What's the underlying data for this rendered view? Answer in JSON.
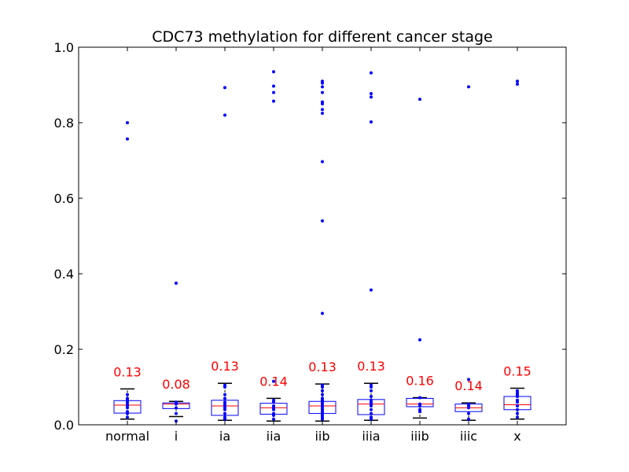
{
  "chart_data": {
    "type": "box",
    "title": "CDC73 methylation for different cancer stage",
    "xlabel": "",
    "ylabel": "",
    "ylim": [
      0.0,
      1.0
    ],
    "yticks": [
      0.0,
      0.2,
      0.4,
      0.6,
      0.8,
      1.0
    ],
    "ytick_labels": [
      "0.0",
      "0.2",
      "0.4",
      "0.6",
      "0.8",
      "1.0"
    ],
    "categories": [
      "normal",
      "i",
      "ia",
      "iia",
      "iib",
      "iiia",
      "iiib",
      "iiic",
      "x"
    ],
    "annotations": [
      "0.13",
      "0.08",
      "0.13",
      "0.14",
      "0.13",
      "0.13",
      "0.16",
      "0.14",
      "0.15"
    ],
    "grid": false,
    "colors": {
      "box": "#0000ff",
      "median": "#ff0000",
      "whisker": "#000000",
      "points": "#0000ff",
      "annotation": "#ff0000"
    },
    "series": [
      {
        "q1": 0.031,
        "median": 0.052,
        "q3": 0.064,
        "whisker_low": 0.015,
        "whisker_high": 0.095,
        "points": [
          0.02,
          0.03,
          0.035,
          0.045,
          0.05,
          0.055,
          0.06,
          0.065,
          0.07,
          0.08,
          0.757,
          0.8
        ]
      },
      {
        "q1": 0.043,
        "median": 0.055,
        "q3": 0.058,
        "whisker_low": 0.022,
        "whisker_high": 0.062,
        "points": [
          0.01,
          0.03,
          0.045,
          0.055,
          0.06,
          0.375
        ]
      },
      {
        "q1": 0.025,
        "median": 0.05,
        "q3": 0.065,
        "whisker_low": 0.012,
        "whisker_high": 0.11,
        "points": [
          0.015,
          0.02,
          0.03,
          0.04,
          0.045,
          0.05,
          0.055,
          0.06,
          0.07,
          0.08,
          0.1,
          0.105,
          0.82,
          0.893
        ]
      },
      {
        "q1": 0.028,
        "median": 0.045,
        "q3": 0.057,
        "whisker_low": 0.01,
        "whisker_high": 0.07,
        "points": [
          0.015,
          0.025,
          0.03,
          0.04,
          0.045,
          0.05,
          0.06,
          0.065,
          0.115,
          0.857,
          0.88,
          0.897,
          0.935
        ]
      },
      {
        "q1": 0.03,
        "median": 0.05,
        "q3": 0.062,
        "whisker_low": 0.01,
        "whisker_high": 0.108,
        "points": [
          0.015,
          0.02,
          0.025,
          0.03,
          0.035,
          0.04,
          0.045,
          0.05,
          0.055,
          0.06,
          0.065,
          0.07,
          0.08,
          0.09,
          0.1,
          0.105,
          0.295,
          0.54,
          0.697,
          0.825,
          0.835,
          0.85,
          0.855,
          0.88,
          0.895,
          0.905,
          0.91
        ]
      },
      {
        "q1": 0.027,
        "median": 0.055,
        "q3": 0.067,
        "whisker_low": 0.012,
        "whisker_high": 0.11,
        "points": [
          0.015,
          0.02,
          0.03,
          0.04,
          0.05,
          0.055,
          0.06,
          0.065,
          0.075,
          0.09,
          0.1,
          0.105,
          0.357,
          0.802,
          0.868,
          0.877,
          0.932
        ]
      },
      {
        "q1": 0.048,
        "median": 0.055,
        "q3": 0.07,
        "whisker_low": 0.018,
        "whisker_high": 0.072,
        "points": [
          0.035,
          0.04,
          0.05,
          0.055,
          0.072,
          0.225,
          0.862
        ]
      },
      {
        "q1": 0.035,
        "median": 0.045,
        "q3": 0.055,
        "whisker_low": 0.012,
        "whisker_high": 0.058,
        "points": [
          0.015,
          0.03,
          0.045,
          0.05,
          0.055,
          0.12,
          0.895
        ]
      },
      {
        "q1": 0.04,
        "median": 0.053,
        "q3": 0.075,
        "whisker_low": 0.015,
        "whisker_high": 0.097,
        "points": [
          0.02,
          0.03,
          0.04,
          0.05,
          0.06,
          0.065,
          0.075,
          0.08,
          0.085,
          0.09,
          0.902,
          0.91
        ]
      }
    ]
  }
}
